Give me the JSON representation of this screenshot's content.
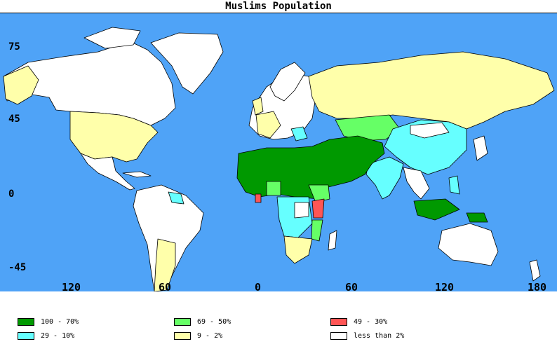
{
  "title": "Muslims Population",
  "colors": {
    "ocean": "#4fa3f7",
    "c100_70": "#009900",
    "c69_50": "#66ff66",
    "c49_30": "#ff5555",
    "c29_10": "#66ffff",
    "c9_2": "#ffffaa",
    "less2": "#ffffff"
  },
  "lat_labels": [
    "75",
    "45",
    "0",
    "-45"
  ],
  "lon_labels": [
    "120",
    "60",
    "0",
    "60",
    "120",
    "180"
  ],
  "legend": [
    {
      "label": "100 - 70%",
      "color": "#009900"
    },
    {
      "label": "69 - 50%",
      "color": "#66ff66"
    },
    {
      "label": "49 - 30%",
      "color": "#ff5555"
    },
    {
      "label": "29 - 10%",
      "color": "#66ffff"
    },
    {
      "label": "9 - 2%",
      "color": "#ffffaa"
    },
    {
      "label": "less than 2%",
      "color": "#ffffff"
    }
  ]
}
